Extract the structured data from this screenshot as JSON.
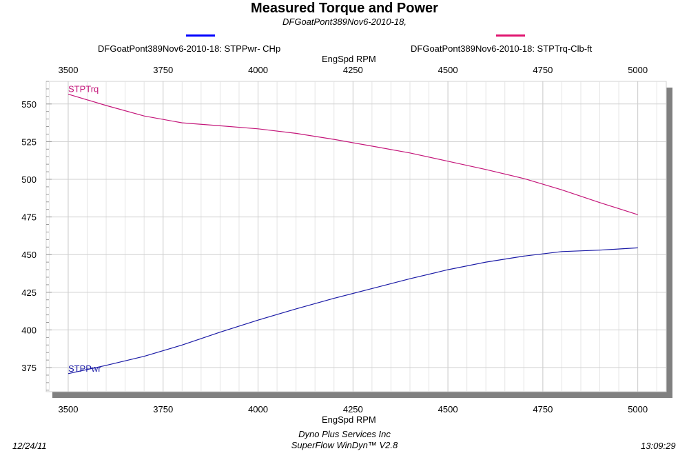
{
  "header": {
    "title": "Measured Torque and Power",
    "subtitle": "DFGoatPont389Nov6-2010-18,"
  },
  "legend": [
    {
      "label": "DFGoatPont389Nov6-2010-18: STPPwr- CHp",
      "color": "#0000ff"
    },
    {
      "label": "DFGoatPont389Nov6-2010-18: STPTrq-Clb-ft",
      "color": "#e0136f"
    }
  ],
  "footer": {
    "date": "12/24/11",
    "company": "Dyno Plus Services Inc",
    "software": "SuperFlow WinDyn™ V2.8",
    "time": "13:09:29"
  },
  "chart_data": {
    "type": "line",
    "xlabel": "EngSpd  RPM",
    "x_ticks": [
      3500,
      3750,
      4000,
      4250,
      4500,
      4750,
      5000
    ],
    "y_ticks": [
      375,
      400,
      425,
      450,
      475,
      500,
      525,
      550
    ],
    "xlim": [
      3442,
      5075
    ],
    "ylim": [
      359,
      565
    ],
    "grid": true,
    "background": "#ffffff",
    "series": [
      {
        "name": "STPPwr",
        "color": "#1a1aa6",
        "x": [
          3500,
          3600,
          3700,
          3800,
          3900,
          4000,
          4100,
          4200,
          4300,
          4400,
          4500,
          4600,
          4700,
          4800,
          4900,
          5000
        ],
        "y": [
          371,
          376.5,
          382.5,
          390,
          398.5,
          406.5,
          414,
          421,
          427.5,
          434,
          440,
          445,
          449,
          452,
          453,
          454.5
        ]
      },
      {
        "name": "STPTrq",
        "color": "#c4167a",
        "x": [
          3500,
          3600,
          3700,
          3800,
          3900,
          4000,
          4100,
          4200,
          4300,
          4400,
          4500,
          4600,
          4700,
          4800,
          4900,
          5000
        ],
        "y": [
          556.5,
          549,
          542,
          537.5,
          535.5,
          533.5,
          530.5,
          526.5,
          522,
          517.5,
          512,
          506.5,
          500.5,
          493,
          484.5,
          476.5
        ]
      }
    ]
  }
}
